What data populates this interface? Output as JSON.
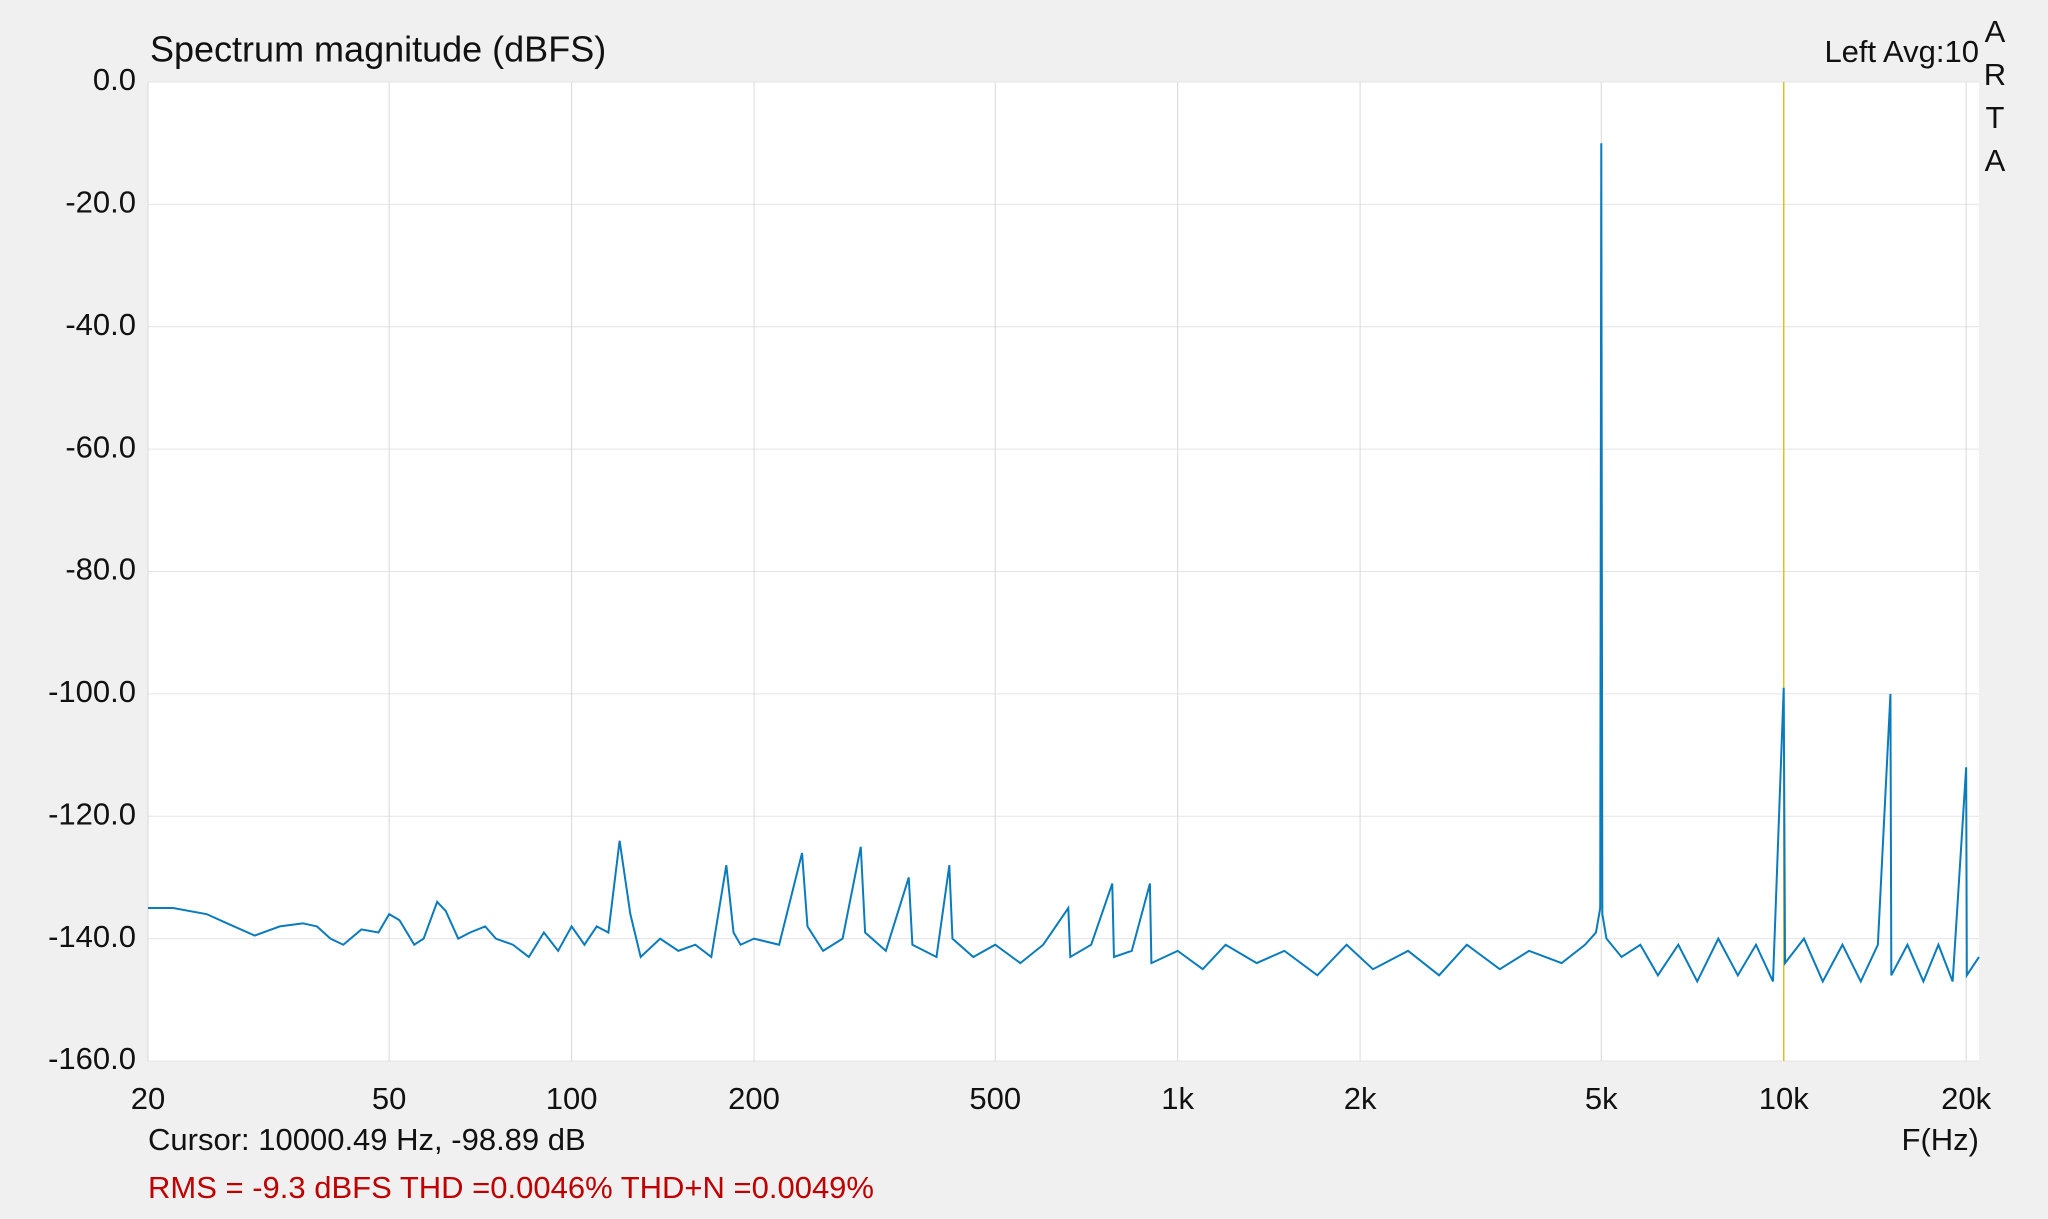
{
  "chart_data": {
    "type": "line",
    "title": "Spectrum magnitude (dBFS)",
    "channel_label": "Left  Avg:10",
    "brand": "ARTA",
    "x_label": "F(Hz)",
    "cursor_text": "Cursor: 10000.49 Hz, -98.89 dB",
    "measurement_text": "RMS =   -9.3 dBFS THD =0.0046% THD+N =0.0049%",
    "cursor_x": 10000.49,
    "cursor_color": "#e0c020",
    "x_scale": "log",
    "grid": true,
    "xlim": [
      20,
      21000
    ],
    "ylim": [
      -160,
      0
    ],
    "xticks": [
      20,
      50,
      100,
      200,
      500,
      {
        "value": 1000,
        "label": "1k"
      },
      {
        "value": 2000,
        "label": "2k"
      },
      {
        "value": 5000,
        "label": "5k"
      },
      {
        "value": 10000,
        "label": "10k"
      },
      {
        "value": 20000,
        "label": "20k"
      }
    ],
    "yticks": [
      {
        "value": 0,
        "label": "0.0"
      },
      {
        "value": -20,
        "label": "-20.0"
      },
      {
        "value": -40,
        "label": "-40.0"
      },
      {
        "value": -60,
        "label": "-60.0"
      },
      {
        "value": -80,
        "label": "-80.0"
      },
      {
        "value": -100,
        "label": "-100.0"
      },
      {
        "value": -120,
        "label": "-120.0"
      },
      {
        "value": -140,
        "label": "-140.0"
      },
      {
        "value": -160,
        "label": "-160.0"
      }
    ],
    "series": [
      {
        "color": "#0a7bbd",
        "x": [
          20,
          22,
          25,
          27,
          30,
          33,
          36,
          38,
          40,
          42,
          45,
          48,
          50,
          52,
          55,
          57,
          60,
          62,
          65,
          68,
          72,
          75,
          80,
          85,
          90,
          95,
          100,
          105,
          110,
          115,
          120,
          125,
          130,
          140,
          150,
          160,
          170,
          180,
          185,
          190,
          200,
          220,
          240,
          245,
          260,
          280,
          300,
          305,
          330,
          360,
          365,
          400,
          420,
          425,
          460,
          500,
          550,
          600,
          660,
          665,
          720,
          780,
          785,
          840,
          900,
          905,
          1000,
          1100,
          1200,
          1350,
          1500,
          1700,
          1900,
          2100,
          2400,
          2700,
          3000,
          3400,
          3800,
          4300,
          4700,
          4900,
          4980,
          5000,
          5020,
          5100,
          5400,
          5800,
          6200,
          6700,
          7200,
          7800,
          8400,
          9000,
          9600,
          10000,
          10050,
          10800,
          11600,
          12500,
          13400,
          14300,
          15000,
          15050,
          16000,
          17000,
          18000,
          19000,
          20000,
          20050,
          21000
        ],
        "values": [
          -135,
          -135,
          -136,
          -137.5,
          -139.5,
          -138,
          -137.5,
          -138,
          -140,
          -141,
          -138.5,
          -139,
          -136,
          -137,
          -141,
          -140,
          -134,
          -135.5,
          -140,
          -139,
          -138,
          -140,
          -141,
          -143,
          -139,
          -142,
          -138,
          -141,
          -138,
          -139,
          -124,
          -136,
          -143,
          -140,
          -142,
          -141,
          -143,
          -128,
          -139,
          -141,
          -140,
          -141,
          -126,
          -138,
          -142,
          -140,
          -125,
          -139,
          -142,
          -130,
          -141,
          -143,
          -128,
          -140,
          -143,
          -141,
          -144,
          -141,
          -135,
          -143,
          -141,
          -131,
          -143,
          -142,
          -131,
          -144,
          -142,
          -145,
          -141,
          -144,
          -142,
          -146,
          -141,
          -145,
          -142,
          -146,
          -141,
          -145,
          -142,
          -144,
          -141,
          -139,
          -135,
          -10,
          -136,
          -140,
          -143,
          -141,
          -146,
          -141,
          -147,
          -140,
          -146,
          -141,
          -147,
          -99,
          -144,
          -140,
          -147,
          -141,
          -147,
          -141,
          -100,
          -146,
          -141,
          -147,
          -141,
          -147,
          -112,
          -146,
          -143
        ]
      }
    ]
  }
}
